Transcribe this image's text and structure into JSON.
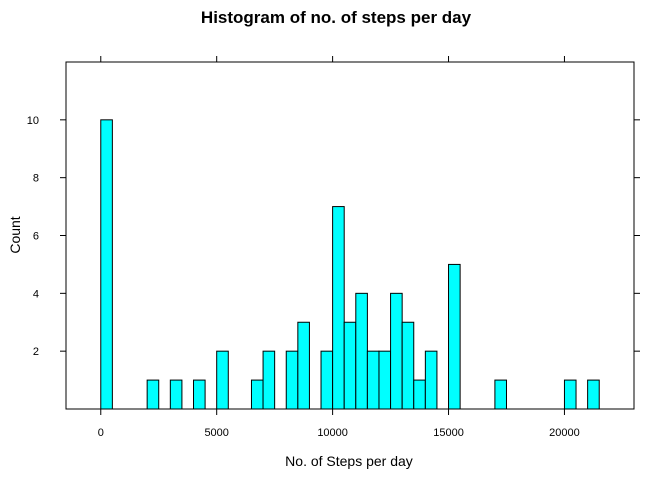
{
  "chart_data": {
    "type": "bar",
    "title": "Histogram of no. of steps per day",
    "xlabel": "No. of Steps per day",
    "ylabel": "Count",
    "bin_width": 500,
    "xlim": [
      -1500,
      23000
    ],
    "ylim": [
      0,
      12
    ],
    "x_ticks": [
      0,
      5000,
      10000,
      15000,
      20000
    ],
    "y_ticks": [
      2,
      4,
      6,
      8,
      10
    ],
    "bins": [
      {
        "x0": 0,
        "x1": 500,
        "count": 10
      },
      {
        "x0": 2000,
        "x1": 2500,
        "count": 1
      },
      {
        "x0": 3000,
        "x1": 3500,
        "count": 1
      },
      {
        "x0": 4000,
        "x1": 4500,
        "count": 1
      },
      {
        "x0": 5000,
        "x1": 5500,
        "count": 2
      },
      {
        "x0": 6500,
        "x1": 7000,
        "count": 1
      },
      {
        "x0": 7000,
        "x1": 7500,
        "count": 2
      },
      {
        "x0": 8000,
        "x1": 8500,
        "count": 2
      },
      {
        "x0": 8500,
        "x1": 9000,
        "count": 3
      },
      {
        "x0": 9500,
        "x1": 10000,
        "count": 2
      },
      {
        "x0": 10000,
        "x1": 10500,
        "count": 7
      },
      {
        "x0": 10500,
        "x1": 11000,
        "count": 3
      },
      {
        "x0": 11000,
        "x1": 11500,
        "count": 4
      },
      {
        "x0": 11500,
        "x1": 12000,
        "count": 2
      },
      {
        "x0": 12000,
        "x1": 12500,
        "count": 2
      },
      {
        "x0": 12500,
        "x1": 13000,
        "count": 4
      },
      {
        "x0": 13000,
        "x1": 13500,
        "count": 3
      },
      {
        "x0": 13500,
        "x1": 14000,
        "count": 1
      },
      {
        "x0": 14000,
        "x1": 14500,
        "count": 2
      },
      {
        "x0": 15000,
        "x1": 15500,
        "count": 5
      },
      {
        "x0": 17000,
        "x1": 17500,
        "count": 1
      },
      {
        "x0": 20000,
        "x1": 20500,
        "count": 1
      },
      {
        "x0": 21000,
        "x1": 21500,
        "count": 1
      }
    ],
    "grid": false,
    "colors": {
      "bar_fill": "#00ffff",
      "bar_stroke": "#000000"
    }
  }
}
